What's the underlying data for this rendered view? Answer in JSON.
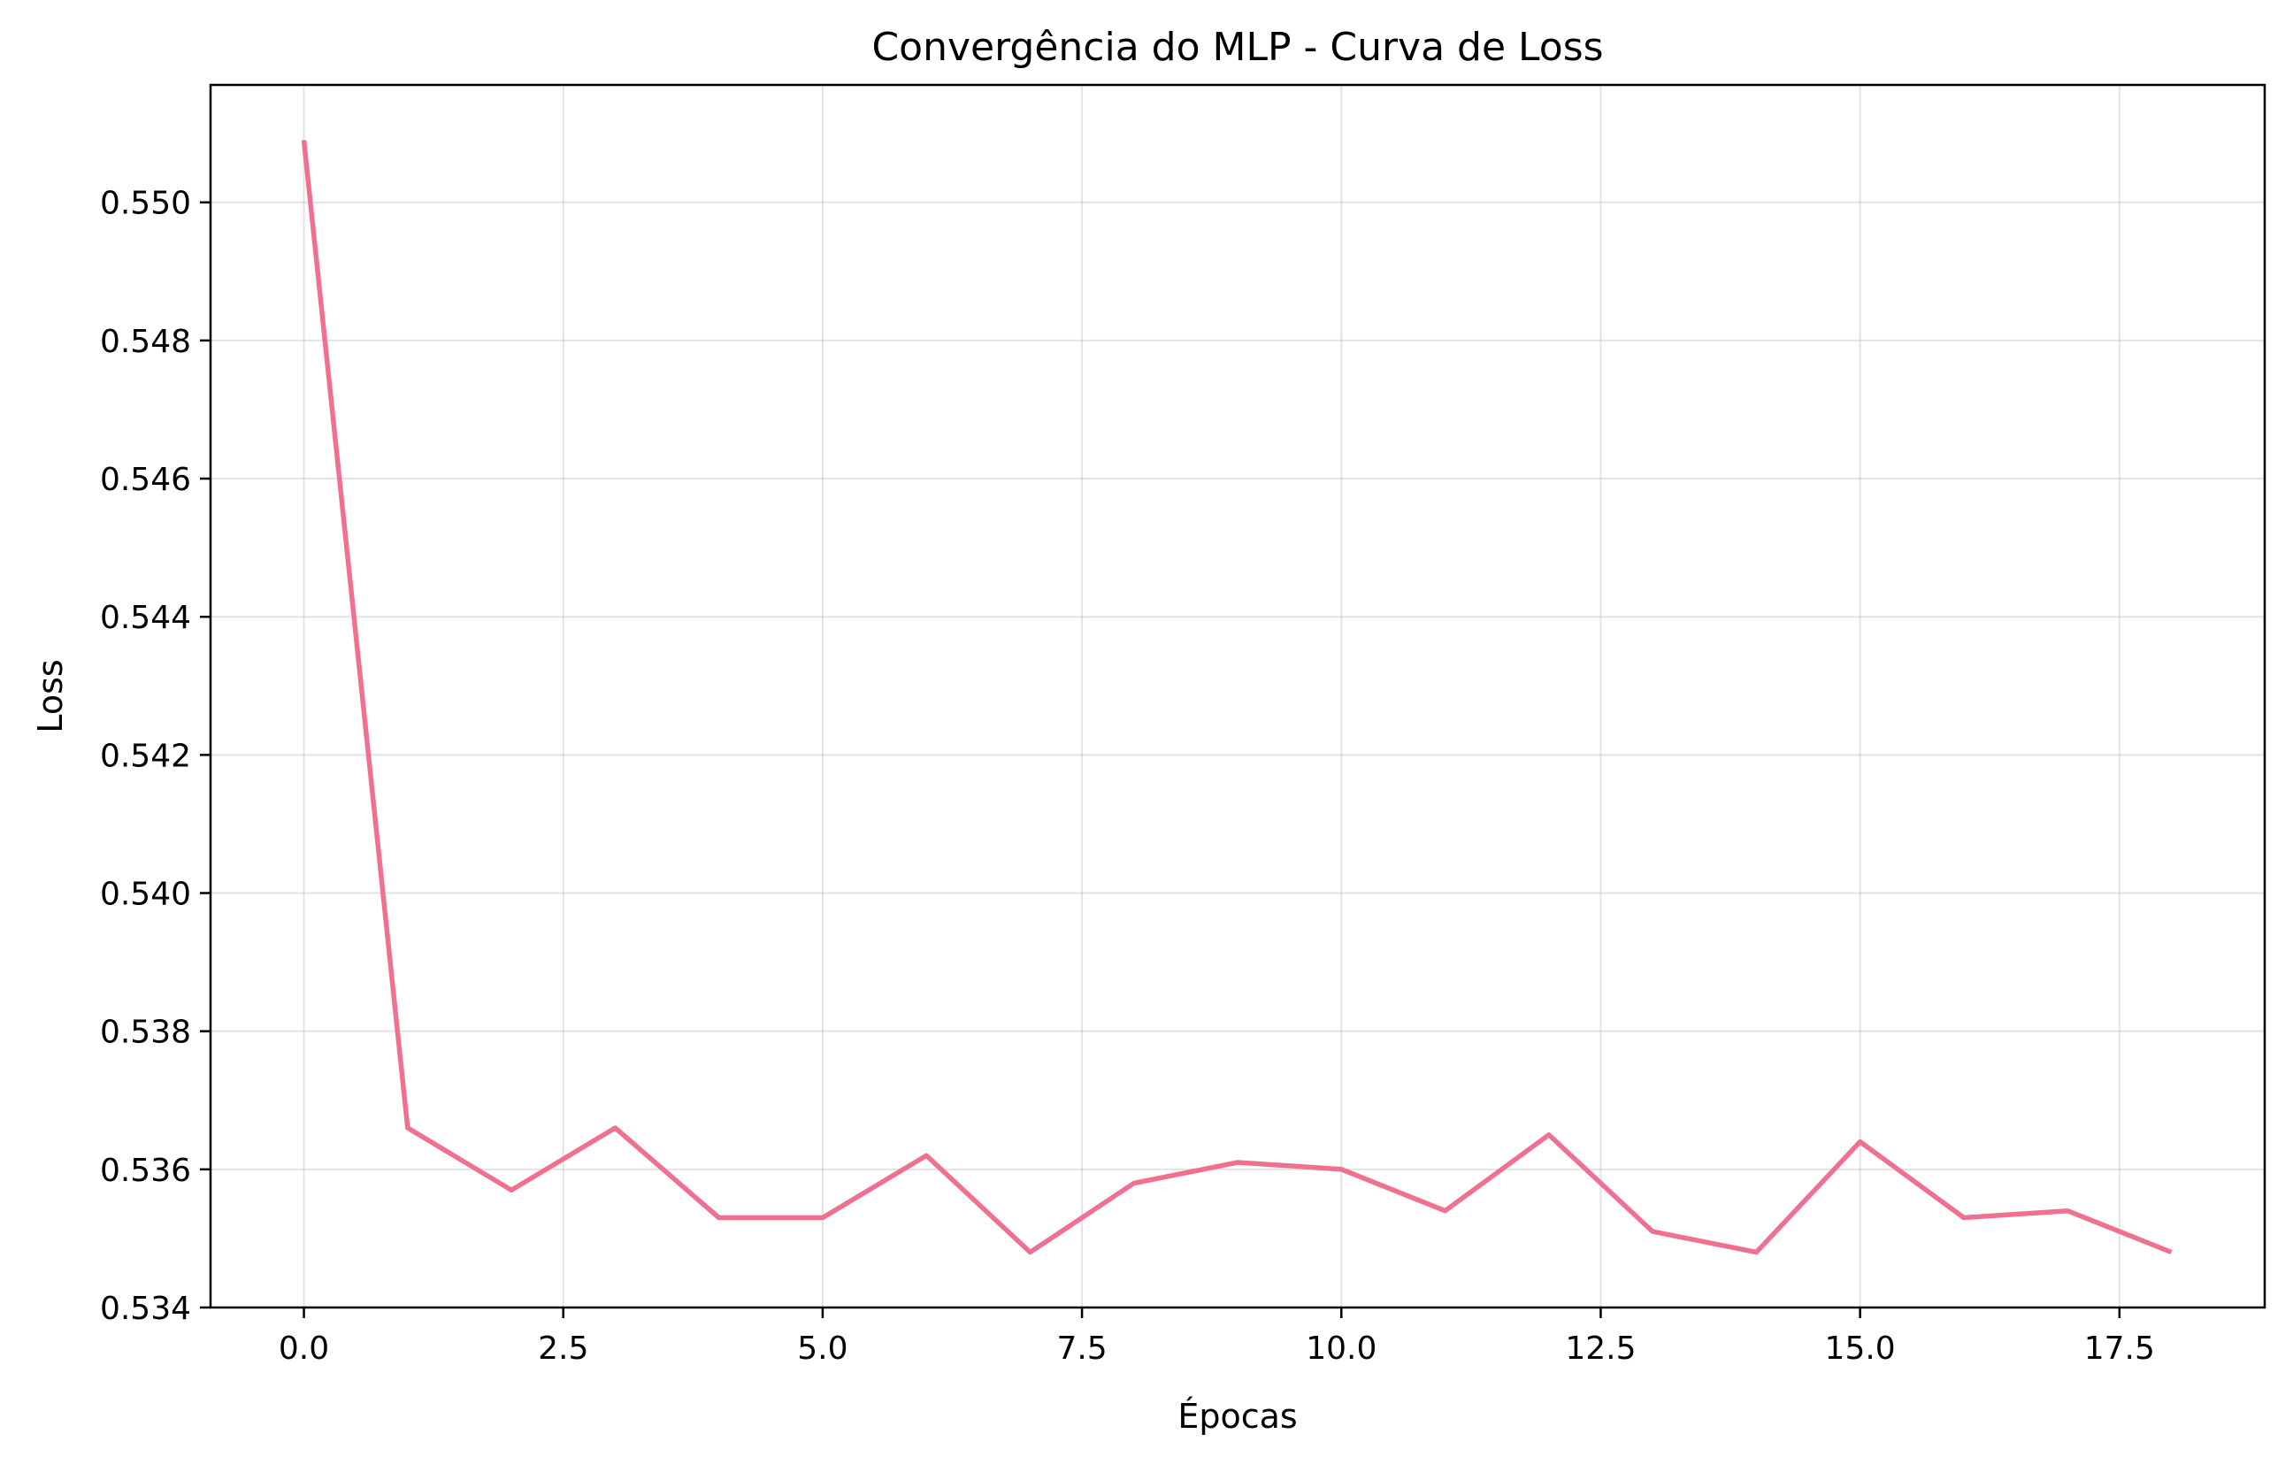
{
  "chart_data": {
    "type": "line",
    "title": "Convergência do MLP - Curva de Loss",
    "xlabel": "Épocas",
    "ylabel": "Loss",
    "xlim": [
      -0.9,
      18.9
    ],
    "ylim": [
      0.534,
      0.5517
    ],
    "xticks": [
      0.0,
      2.5,
      5.0,
      7.5,
      10.0,
      12.5,
      15.0,
      17.5
    ],
    "xtick_labels": [
      "0.0",
      "2.5",
      "5.0",
      "7.5",
      "10.0",
      "12.5",
      "15.0",
      "17.5"
    ],
    "yticks": [
      0.534,
      0.536,
      0.538,
      0.54,
      0.542,
      0.544,
      0.546,
      0.548,
      0.55
    ],
    "ytick_labels": [
      "0.534",
      "0.536",
      "0.538",
      "0.540",
      "0.542",
      "0.544",
      "0.546",
      "0.548",
      "0.550"
    ],
    "grid": true,
    "series": [
      {
        "name": "Loss",
        "color": "#f07090",
        "x": [
          0,
          1,
          2,
          3,
          4,
          5,
          6,
          7,
          8,
          9,
          10,
          11,
          12,
          13,
          14,
          15,
          16,
          17,
          18
        ],
        "values": [
          0.5509,
          0.5366,
          0.5357,
          0.5366,
          0.5353,
          0.5353,
          0.5362,
          0.5348,
          0.5358,
          0.5361,
          0.536,
          0.5354,
          0.5365,
          0.5351,
          0.5348,
          0.5364,
          0.5353,
          0.5354,
          0.5348
        ]
      }
    ]
  }
}
